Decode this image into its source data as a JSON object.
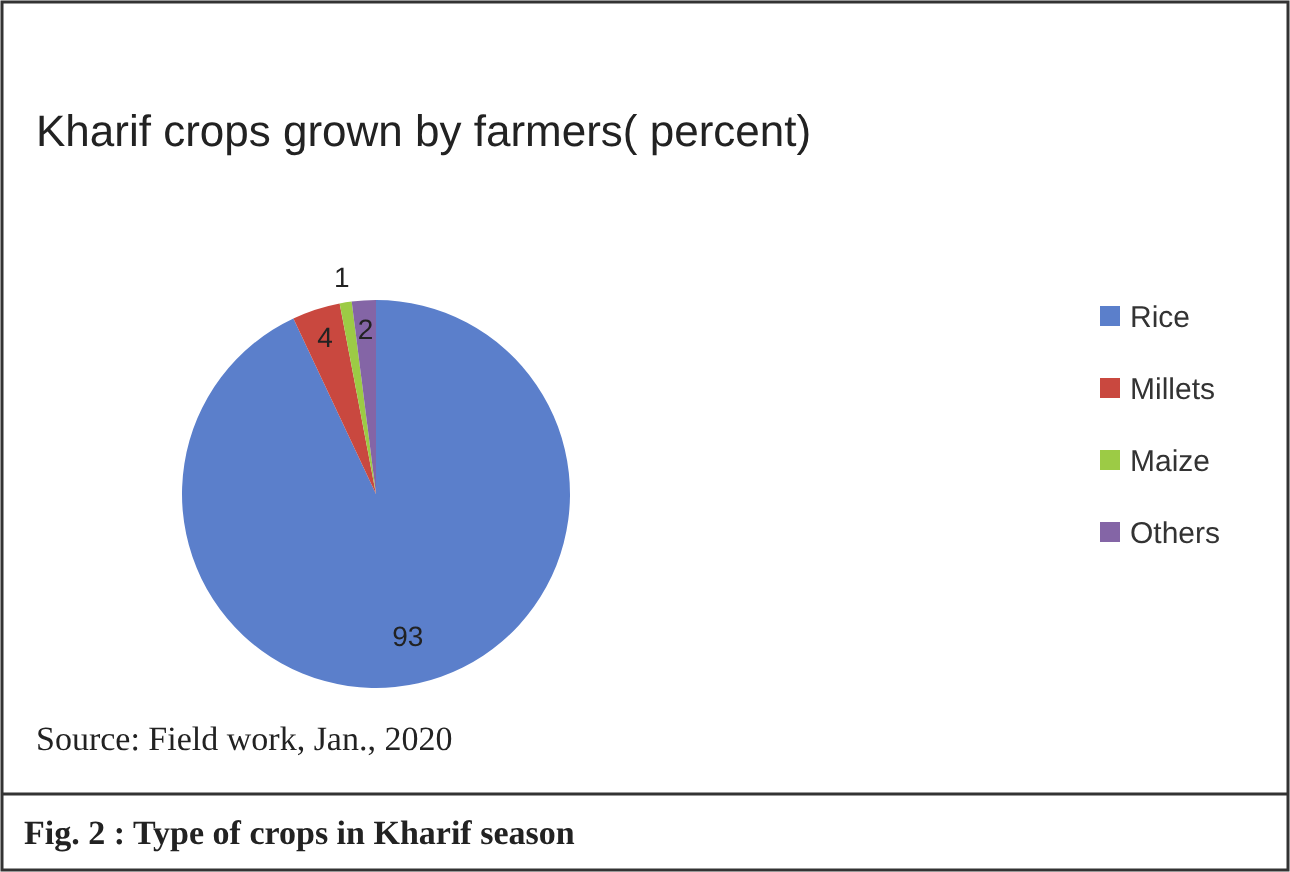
{
  "chart_data": {
    "type": "pie",
    "title": "Kharif crops grown by farmers( percent)",
    "categories": [
      "Rice",
      "Millets",
      "Maize",
      "Others"
    ],
    "values": [
      93,
      4,
      1,
      2
    ],
    "colors": [
      "#5b7fcb",
      "#c9483f",
      "#9ccb45",
      "#8465a6"
    ],
    "data_labels": true,
    "legend": "right",
    "annotations": [
      "Source: Field work, Jan., 2020",
      "Fig. 2 :   Type of crops in Kharif season"
    ]
  }
}
